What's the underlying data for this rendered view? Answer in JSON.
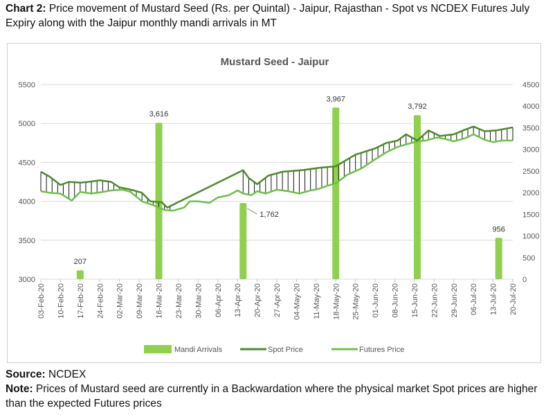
{
  "caption": {
    "label": "Chart 2:",
    "text": " Price movement of Mustard Seed (Rs. per Quintal) - Jaipur, Rajasthan - Spot vs NCDEX Futures July Expiry along with the Jaipur monthly mandi arrivals in MT"
  },
  "source": {
    "label": "Source:",
    "text": " NCDEX"
  },
  "note": {
    "label": "Note:",
    "text": " Prices of Mustard seed are currently in a Backwardation where the physical market Spot prices are higher than the expected Futures prices"
  },
  "colors": {
    "bars": "#8fd14f",
    "spot": "#4a8a2a",
    "futures": "#6cc04a",
    "hilo": "#111111",
    "grid": "#d9d9d9"
  },
  "chart_data": {
    "type": "bar",
    "title": "Mustard Seed - Jaipur",
    "primary_axis": {
      "ylim": [
        3000,
        5500
      ],
      "ticks": [
        "3000",
        "3500",
        "4000",
        "4500",
        "5000",
        "5500"
      ]
    },
    "secondary_axis": {
      "ylim": [
        0,
        4500
      ],
      "ticks": [
        "0",
        "500",
        "1000",
        "1500",
        "2000",
        "2500",
        "3000",
        "3500",
        "4000",
        "4500"
      ]
    },
    "x_ticks": [
      "03-Feb-20",
      "10-Feb-20",
      "17-Feb-20",
      "24-Feb-20",
      "02-Mar-20",
      "09-Mar-20",
      "16-Mar-20",
      "23-Mar-20",
      "30-Mar-20",
      "06-Apr-20",
      "13-Apr-20",
      "20-Apr-20",
      "27-Apr-20",
      "04-May-20",
      "11-May-20",
      "18-May-20",
      "25-May-20",
      "01-Jun-20",
      "08-Jun-20",
      "15-Jun-20",
      "22-Jun-20",
      "29-Jun-20",
      "06-Jul-20",
      "13-Jul-20",
      "20-Jul-20"
    ],
    "x_range": [
      "03-Feb-20",
      "20-Jul-20"
    ],
    "legend_position": "bottom",
    "legend": [
      "Mandi Arrivals",
      "Spot Price",
      "Futures Price"
    ],
    "bar_series": {
      "name": "Mandi Arrivals",
      "axis": "secondary",
      "dates": [
        "17-Feb-20",
        "16-Mar-20",
        "15-Apr-20",
        "18-May-20",
        "16-Jun-20",
        "15-Jul-20"
      ],
      "values": [
        207,
        3616,
        1762,
        3967,
        3792,
        956
      ],
      "labels": [
        "207",
        "3,616",
        "1,762",
        "3,967",
        "3,792",
        "956"
      ]
    },
    "spot": {
      "name": "Spot Price",
      "axis": "primary",
      "points": [
        [
          "03-Feb-20",
          4380
        ],
        [
          "06-Feb-20",
          4320
        ],
        [
          "10-Feb-20",
          4210
        ],
        [
          "13-Feb-20",
          4250
        ],
        [
          "17-Feb-20",
          4240
        ],
        [
          "20-Feb-20",
          4250
        ],
        [
          "24-Feb-20",
          4270
        ],
        [
          "28-Feb-20",
          4250
        ],
        [
          "02-Mar-20",
          4180
        ],
        [
          "06-Mar-20",
          4150
        ],
        [
          "10-Mar-20",
          4110
        ],
        [
          "13-Mar-20",
          4000
        ],
        [
          "17-Mar-20",
          3990
        ],
        [
          "19-Mar-20",
          3920
        ],
        [
          "15-Apr-20",
          4400
        ],
        [
          "17-Apr-20",
          4300
        ],
        [
          "20-Apr-20",
          4220
        ],
        [
          "24-Apr-20",
          4330
        ],
        [
          "29-Apr-20",
          4380
        ],
        [
          "06-May-20",
          4400
        ],
        [
          "12-May-20",
          4430
        ],
        [
          "18-May-20",
          4450
        ],
        [
          "25-May-20",
          4600
        ],
        [
          "01-Jun-20",
          4680
        ],
        [
          "05-Jun-20",
          4750
        ],
        [
          "09-Jun-20",
          4780
        ],
        [
          "12-Jun-20",
          4860
        ],
        [
          "16-Jun-20",
          4780
        ],
        [
          "20-Jun-20",
          4910
        ],
        [
          "24-Jun-20",
          4840
        ],
        [
          "29-Jun-20",
          4860
        ],
        [
          "03-Jul-20",
          4920
        ],
        [
          "06-Jul-20",
          4960
        ],
        [
          "10-Jul-20",
          4900
        ],
        [
          "14-Jul-20",
          4910
        ],
        [
          "17-Jul-20",
          4930
        ],
        [
          "20-Jul-20",
          4950
        ]
      ]
    },
    "futures": {
      "name": "Futures Price",
      "axis": "primary",
      "points": [
        [
          "03-Feb-20",
          4130
        ],
        [
          "06-Feb-20",
          4110
        ],
        [
          "10-Feb-20",
          4100
        ],
        [
          "14-Feb-20",
          4010
        ],
        [
          "17-Feb-20",
          4120
        ],
        [
          "21-Feb-20",
          4100
        ],
        [
          "25-Feb-20",
          4120
        ],
        [
          "28-Feb-20",
          4140
        ],
        [
          "03-Mar-20",
          4150
        ],
        [
          "06-Mar-20",
          4120
        ],
        [
          "10-Mar-20",
          4000
        ],
        [
          "14-Mar-20",
          3950
        ],
        [
          "18-Mar-20",
          3890
        ],
        [
          "21-Mar-20",
          3880
        ],
        [
          "25-Mar-20",
          3920
        ],
        [
          "27-Mar-20",
          4000
        ],
        [
          "30-Mar-20",
          4000
        ],
        [
          "03-Apr-20",
          3980
        ],
        [
          "06-Apr-20",
          4050
        ],
        [
          "10-Apr-20",
          4080
        ],
        [
          "13-Apr-20",
          4140
        ],
        [
          "15-Apr-20",
          4100
        ],
        [
          "18-Apr-20",
          4080
        ],
        [
          "20-Apr-20",
          4130
        ],
        [
          "23-Apr-20",
          4100
        ],
        [
          "27-Apr-20",
          4150
        ],
        [
          "01-May-20",
          4130
        ],
        [
          "05-May-20",
          4100
        ],
        [
          "09-May-20",
          4140
        ],
        [
          "12-May-20",
          4160
        ],
        [
          "15-May-20",
          4200
        ],
        [
          "18-May-20",
          4230
        ],
        [
          "22-May-20",
          4340
        ],
        [
          "27-May-20",
          4420
        ],
        [
          "01-Jun-20",
          4540
        ],
        [
          "05-Jun-20",
          4630
        ],
        [
          "09-Jun-20",
          4700
        ],
        [
          "12-Jun-20",
          4730
        ],
        [
          "16-Jun-20",
          4770
        ],
        [
          "19-Jun-20",
          4780
        ],
        [
          "23-Jun-20",
          4820
        ],
        [
          "26-Jun-20",
          4800
        ],
        [
          "29-Jun-20",
          4770
        ],
        [
          "03-Jul-20",
          4810
        ],
        [
          "06-Jul-20",
          4860
        ],
        [
          "10-Jul-20",
          4790
        ],
        [
          "13-Jul-20",
          4760
        ],
        [
          "16-Jul-20",
          4780
        ],
        [
          "20-Jul-20",
          4780
        ]
      ]
    }
  }
}
